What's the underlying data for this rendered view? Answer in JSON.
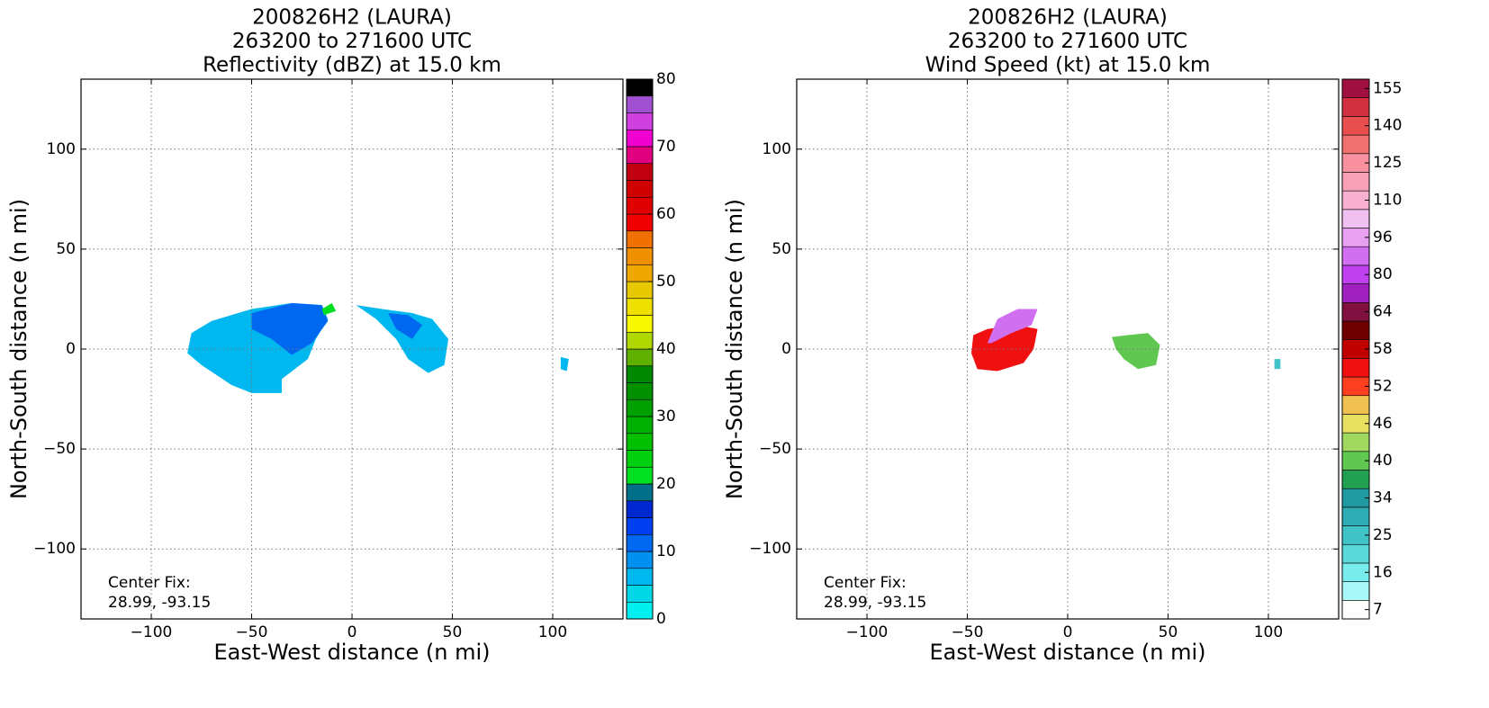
{
  "chart_data": [
    {
      "type": "heatmap",
      "title": [
        "200826H2 (LAURA)",
        "263200 to 271600 UTC",
        "Reflectivity (dBZ) at 15.0 km"
      ],
      "xlabel": "East-West distance (n mi)",
      "ylabel": "North-South distance (n mi)",
      "xlim": [
        -135,
        135
      ],
      "ylim": [
        -135,
        135
      ],
      "xticks": [
        {
          "value": -100,
          "label": "−100"
        },
        {
          "value": -50,
          "label": "−50"
        },
        0,
        50,
        100
      ],
      "yticks": [
        {
          "value": -100,
          "label": "−100"
        },
        {
          "value": -50,
          "label": "−50"
        },
        0,
        50,
        100
      ],
      "grid": true,
      "annotation": [
        "Center Fix:",
        "28.99, -93.15"
      ],
      "colorbar": {
        "scale": "linear",
        "clim": [
          0,
          80
        ],
        "ticks": [
          0,
          10,
          20,
          30,
          40,
          50,
          60,
          70,
          80
        ],
        "colors": [
          "#00f0f0",
          "#00d8e8",
          "#00b8f0",
          "#0090f0",
          "#0068f0",
          "#0040f0",
          "#0028d0",
          "#007088",
          "#00e020",
          "#00d010",
          "#00c000",
          "#00b000",
          "#00a000",
          "#009000",
          "#008800",
          "#60b000",
          "#b0d800",
          "#f8f800",
          "#f0e000",
          "#e8c800",
          "#f0a800",
          "#f09000",
          "#f07000",
          "#f00000",
          "#e00000",
          "#d00000",
          "#c00010",
          "#e00080",
          "#f000d0",
          "#d040e0",
          "#a050d0",
          "#000000"
        ]
      },
      "regions": [
        {
          "value": 5,
          "points": [
            [
              -80,
              8
            ],
            [
              -70,
              14
            ],
            [
              -50,
              20
            ],
            [
              -30,
              23
            ],
            [
              -15,
              22
            ],
            [
              -12,
              15
            ],
            [
              -18,
              5
            ],
            [
              -22,
              -5
            ],
            [
              -35,
              -15
            ],
            [
              -35,
              -22
            ],
            [
              -50,
              -22
            ],
            [
              -60,
              -18
            ],
            [
              -75,
              -8
            ],
            [
              -82,
              -2
            ]
          ]
        },
        {
          "value": 11,
          "points": [
            [
              -50,
              18
            ],
            [
              -30,
              23
            ],
            [
              -15,
              22
            ],
            [
              -12,
              14
            ],
            [
              -20,
              3
            ],
            [
              -30,
              -3
            ],
            [
              -40,
              5
            ],
            [
              -50,
              10
            ]
          ]
        },
        {
          "value": 21,
          "points": [
            [
              -15,
              20
            ],
            [
              -10,
              23
            ],
            [
              -8,
              19
            ],
            [
              -14,
              17
            ]
          ]
        },
        {
          "value": 5,
          "points": [
            [
              2,
              22
            ],
            [
              15,
              20
            ],
            [
              30,
              18
            ],
            [
              40,
              15
            ],
            [
              48,
              5
            ],
            [
              46,
              -8
            ],
            [
              38,
              -12
            ],
            [
              28,
              -5
            ],
            [
              22,
              5
            ],
            [
              12,
              15
            ]
          ]
        },
        {
          "value": 11,
          "points": [
            [
              18,
              18
            ],
            [
              28,
              17
            ],
            [
              35,
              12
            ],
            [
              30,
              5
            ],
            [
              22,
              10
            ]
          ]
        },
        {
          "value": 5,
          "points": [
            [
              104,
              -4
            ],
            [
              108,
              -5
            ],
            [
              107,
              -11
            ],
            [
              104,
              -10
            ]
          ]
        }
      ]
    },
    {
      "type": "heatmap",
      "title": [
        "200826H2 (LAURA)",
        "263200 to 271600 UTC",
        "Wind Speed (kt) at 15.0 km"
      ],
      "xlabel": "East-West distance (n mi)",
      "ylabel": "North-South distance (n mi)",
      "xlim": [
        -135,
        135
      ],
      "ylim": [
        -135,
        135
      ],
      "xticks": [
        {
          "value": -100,
          "label": "−100"
        },
        {
          "value": -50,
          "label": "−50"
        },
        0,
        50,
        100
      ],
      "yticks": [
        {
          "value": -100,
          "label": "−100"
        },
        {
          "value": -50,
          "label": "−50"
        },
        0,
        50,
        100
      ],
      "grid": true,
      "annotation": [
        "Center Fix:",
        "28.99, -93.15"
      ],
      "colorbar": {
        "scale": "categorical",
        "ticks": [
          7,
          16,
          25,
          34,
          40,
          46,
          52,
          58,
          64,
          80,
          96,
          110,
          125,
          140,
          155
        ],
        "colors": [
          "#ffffff",
          "#a8f8f8",
          "#78ecec",
          "#58d8d8",
          "#40c4c8",
          "#30acb4",
          "#209aa0",
          "#20a050",
          "#60c850",
          "#a0d860",
          "#e8e060",
          "#f0c050",
          "#ff4020",
          "#f01010",
          "#c00000",
          "#700000",
          "#801040",
          "#a020c0",
          "#c040f0",
          "#d070f0",
          "#e8a0f0",
          "#f0c0f0",
          "#f8b0d0",
          "#f8a0b8",
          "#f890a0",
          "#f07070",
          "#e85050",
          "#d03040",
          "#a01040"
        ]
      },
      "regions": [
        {
          "value": 55,
          "points": [
            [
              -47,
              7
            ],
            [
              -40,
              10
            ],
            [
              -25,
              12
            ],
            [
              -15,
              10
            ],
            [
              -17,
              0
            ],
            [
              -22,
              -7
            ],
            [
              -35,
              -11
            ],
            [
              -45,
              -10
            ],
            [
              -48,
              -2
            ]
          ]
        },
        {
          "value": 85,
          "points": [
            [
              -40,
              3
            ],
            [
              -35,
              15
            ],
            [
              -25,
              20
            ],
            [
              -15,
              20
            ],
            [
              -18,
              12
            ],
            [
              -28,
              8
            ],
            [
              -38,
              3
            ]
          ]
        },
        {
          "value": 40,
          "points": [
            [
              22,
              6
            ],
            [
              30,
              7
            ],
            [
              40,
              8
            ],
            [
              46,
              2
            ],
            [
              44,
              -8
            ],
            [
              35,
              -10
            ],
            [
              28,
              -5
            ],
            [
              24,
              0
            ]
          ]
        },
        {
          "value": 25,
          "points": [
            [
              103,
              -5
            ],
            [
              106,
              -5
            ],
            [
              106,
              -10
            ],
            [
              103,
              -10
            ]
          ]
        }
      ]
    }
  ]
}
